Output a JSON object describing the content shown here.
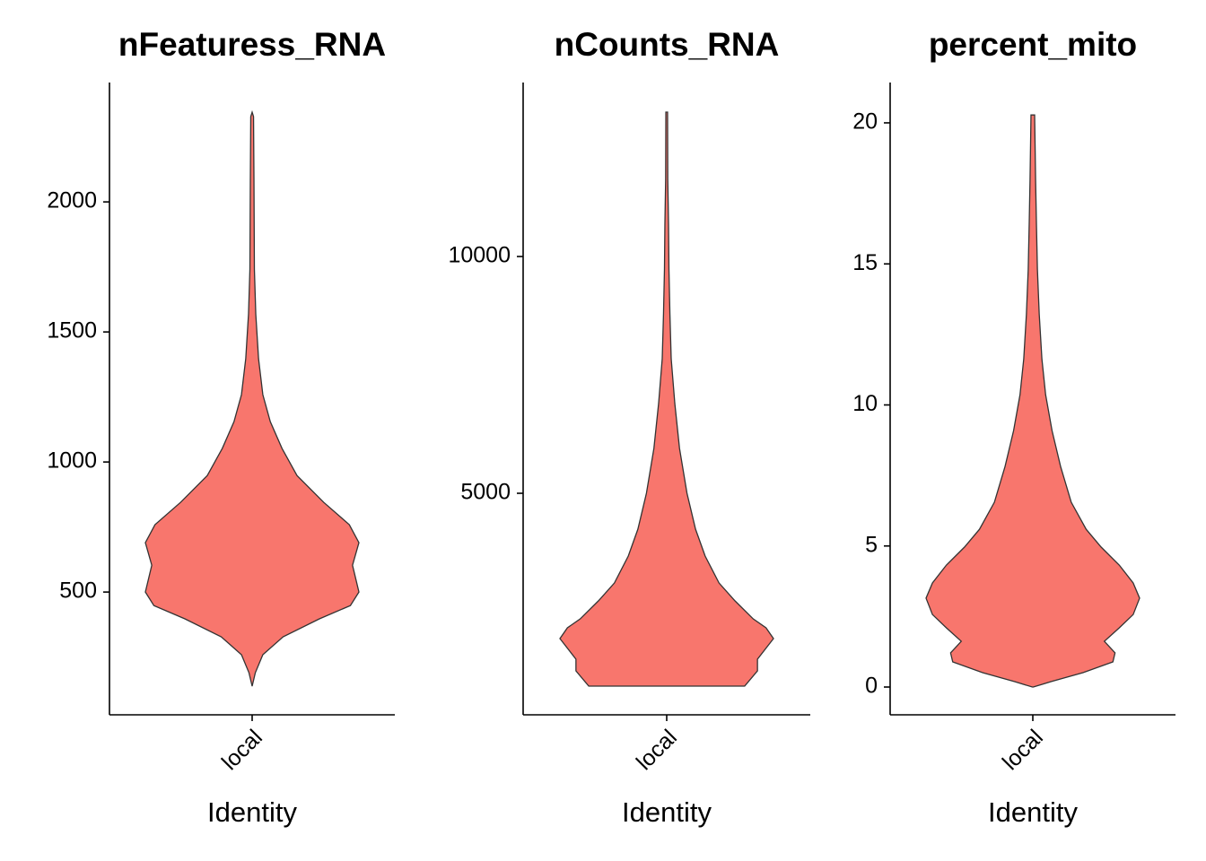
{
  "chart_data": [
    {
      "type": "violin",
      "title": "nFeaturess_RNA",
      "xlabel": "Identity",
      "categories": [
        "local"
      ],
      "color": "#F8766D",
      "ylim": [
        28,
        2459
      ],
      "yticks": [
        500,
        1000,
        1500,
        2000
      ],
      "y": [
        138,
        190,
        259,
        328,
        397,
        448,
        500,
        603,
        690,
        759,
        845,
        948,
        1052,
        1155,
        1259,
        1397,
        1569,
        1741,
        2086,
        2328,
        2345
      ],
      "density": [
        0,
        0.03,
        0.1,
        0.29,
        0.63,
        0.92,
        1,
        0.94,
        1,
        0.91,
        0.67,
        0.42,
        0.28,
        0.17,
        0.1,
        0.06,
        0.034,
        0.021,
        0.017,
        0.013,
        0
      ]
    },
    {
      "type": "violin",
      "title": "nCounts_RNA",
      "xlabel": "Identity",
      "categories": [
        "local"
      ],
      "color": "#F8766D",
      "ylim": [
        322,
        13674
      ],
      "yticks": [
        5000,
        10000
      ],
      "y": [
        928,
        1250,
        1496,
        1932,
        2159,
        2348,
        2727,
        3106,
        3674,
        4242,
        5000,
        5947,
        6894,
        7841,
        8788,
        9735,
        10682,
        11629,
        13049
      ],
      "density": [
        0.73,
        0.85,
        0.85,
        1,
        0.93,
        0.81,
        0.64,
        0.49,
        0.36,
        0.27,
        0.19,
        0.12,
        0.076,
        0.042,
        0.03,
        0.021,
        0.017,
        0.01,
        0.008
      ]
    },
    {
      "type": "violin",
      "title": "percent_mito",
      "xlabel": "Identity",
      "categories": [
        "local"
      ],
      "color": "#F8766D",
      "ylim": [
        -0.985,
        21.43
      ],
      "yticks": [
        0,
        5,
        10,
        15,
        20
      ],
      "y": [
        0,
        0.19,
        0.51,
        0.89,
        1.21,
        1.62,
        2.1,
        2.57,
        3.15,
        3.69,
        4.32,
        4.96,
        5.59,
        6.55,
        7.82,
        9.09,
        10.36,
        11.63,
        13.22,
        14.81,
        16.4,
        17.99,
        20.28
      ],
      "density": [
        0.004,
        0.17,
        0.47,
        0.75,
        0.77,
        0.67,
        0.81,
        0.94,
        1,
        0.94,
        0.81,
        0.64,
        0.5,
        0.36,
        0.26,
        0.18,
        0.12,
        0.085,
        0.06,
        0.043,
        0.034,
        0.026,
        0.017
      ]
    }
  ]
}
